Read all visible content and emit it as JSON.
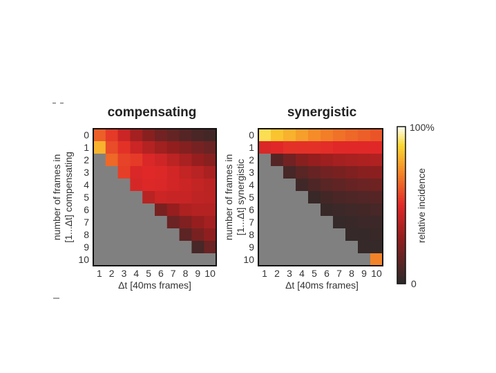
{
  "chart_data": [
    {
      "type": "heatmap",
      "title": "compensating",
      "xlabel": "Δt [40ms frames]",
      "ylabel_lines": [
        "number of frames in",
        "[1...Δt] compensating"
      ],
      "x": [
        1,
        2,
        3,
        4,
        5,
        6,
        7,
        8,
        9,
        10
      ],
      "y": [
        0,
        1,
        2,
        3,
        4,
        5,
        6,
        7,
        8,
        9,
        10
      ],
      "undefined_color": "#808080",
      "values": [
        [
          62,
          54,
          44,
          34,
          26,
          20,
          16,
          12,
          9,
          7
        ],
        [
          80,
          58,
          52,
          44,
          38,
          33,
          29,
          25,
          21,
          18
        ],
        [
          null,
          64,
          56,
          54,
          48,
          45,
          40,
          35,
          30,
          26
        ],
        [
          null,
          null,
          55,
          48,
          50,
          49,
          46,
          42,
          39,
          35
        ],
        [
          null,
          null,
          null,
          47,
          49,
          48,
          46,
          44,
          42,
          40
        ],
        [
          null,
          null,
          null,
          null,
          39,
          44,
          43,
          43,
          41,
          40
        ],
        [
          null,
          null,
          null,
          null,
          null,
          22,
          30,
          36,
          38,
          38
        ],
        [
          null,
          null,
          null,
          null,
          null,
          null,
          18,
          24,
          30,
          34
        ],
        [
          null,
          null,
          null,
          null,
          null,
          null,
          null,
          14,
          22,
          28
        ],
        [
          null,
          null,
          null,
          null,
          null,
          null,
          null,
          null,
          8,
          18
        ],
        [
          null,
          null,
          null,
          null,
          null,
          null,
          null,
          null,
          null,
          null
        ]
      ]
    },
    {
      "type": "heatmap",
      "title": "synergistic",
      "xlabel": "Δt [40ms frames]",
      "ylabel_lines": [
        "number of frames in",
        "[1...Δt] synergistic"
      ],
      "x": [
        1,
        2,
        3,
        4,
        5,
        6,
        7,
        8,
        9,
        10
      ],
      "y": [
        0,
        1,
        2,
        3,
        4,
        5,
        6,
        7,
        8,
        9,
        10
      ],
      "undefined_color": "#808080",
      "values": [
        [
          90,
          84,
          80,
          76,
          72,
          69,
          66,
          64,
          62,
          60
        ],
        [
          48,
          50,
          52,
          52,
          52,
          51,
          50,
          50,
          50,
          50
        ],
        [
          null,
          12,
          20,
          26,
          30,
          32,
          34,
          35,
          36,
          37
        ],
        [
          null,
          null,
          8,
          13,
          17,
          20,
          22,
          24,
          26,
          27
        ],
        [
          null,
          null,
          null,
          6,
          10,
          13,
          15,
          17,
          18,
          19
        ],
        [
          null,
          null,
          null,
          null,
          4,
          7,
          9,
          10,
          11,
          12
        ],
        [
          null,
          null,
          null,
          null,
          null,
          4,
          5,
          6,
          7,
          8
        ],
        [
          null,
          null,
          null,
          null,
          null,
          null,
          3,
          4,
          5,
          5
        ],
        [
          null,
          null,
          null,
          null,
          null,
          null,
          null,
          3,
          3,
          4
        ],
        [
          null,
          null,
          null,
          null,
          null,
          null,
          null,
          null,
          3,
          3
        ],
        [
          null,
          null,
          null,
          null,
          null,
          null,
          null,
          null,
          null,
          70
        ]
      ]
    }
  ],
  "colorbar": {
    "label": "relative incidence",
    "max_label": "100%",
    "min_label": "0",
    "range": [
      0,
      100
    ],
    "colormap": "hot"
  }
}
